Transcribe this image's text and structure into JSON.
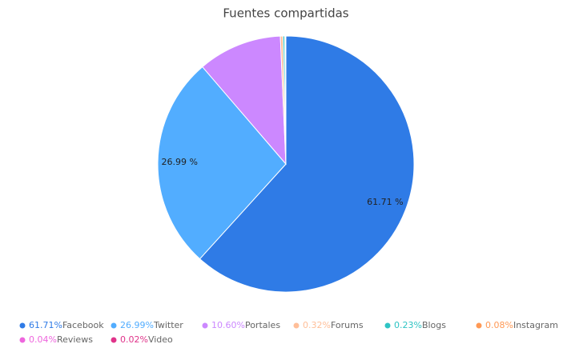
{
  "chart_data": {
    "type": "pie",
    "title": "Fuentes compartidas",
    "categories": [
      "Facebook",
      "Twitter",
      "Portales",
      "Forums",
      "Blogs",
      "Instagram",
      "Reviews",
      "Video"
    ],
    "values": [
      61.71,
      26.99,
      10.6,
      0.32,
      0.23,
      0.08,
      0.04,
      0.02
    ],
    "value_labels": [
      "61.71 %",
      "26.99 %",
      null,
      null,
      null,
      null,
      null,
      null
    ],
    "legend_value_labels": [
      "61.71%",
      "26.99%",
      "10.60%",
      "0.32%",
      "0.23%",
      "0.08%",
      "0.04%",
      "0.02%"
    ],
    "colors": [
      "#2f7be6",
      "#52adff",
      "#cc88ff",
      "#ffbf99",
      "#2ec4c4",
      "#ff9955",
      "#ee66dd",
      "#e0338a"
    ],
    "legend": "bottom"
  }
}
